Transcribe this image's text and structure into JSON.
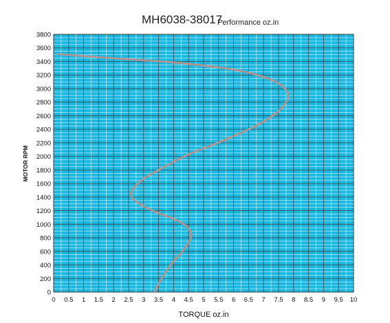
{
  "chart_data": {
    "type": "line",
    "title": "MH6038-38017",
    "subtitle": "Performance oz.in",
    "xlabel": "TORQUE  oz.in",
    "ylabel": "MOTOR RPM",
    "xlim": [
      0,
      10
    ],
    "ylim": [
      0,
      3800
    ],
    "x_ticks": [
      "0",
      "0.5",
      "1",
      "1.5",
      "2",
      "2.5",
      "3",
      "3.5",
      "4",
      "4.5",
      "5",
      "5.5",
      "6",
      "6.5",
      "7",
      "7.5",
      "8",
      "8.5",
      "9",
      "9.5",
      "10"
    ],
    "y_ticks": [
      "0",
      "200",
      "400",
      "600",
      "800",
      "1000",
      "1200",
      "1400",
      "1600",
      "1800",
      "2000",
      "2200",
      "2400",
      "2600",
      "2800",
      "3000",
      "3200",
      "3400",
      "3600",
      "3800"
    ],
    "grid": true,
    "colors": {
      "plot_bg": "#19b8e0",
      "grid_minor": "#ffffff",
      "grid_major": "#444444",
      "series_main": "#9a9aaa",
      "series_overlay": "#e0884a"
    },
    "series": [
      {
        "x": [
          3.35,
          3.6,
          3.9,
          4.2,
          4.45,
          4.57,
          4.55,
          4.4,
          4.1,
          3.7,
          3.3,
          2.95,
          2.7,
          2.58,
          2.62,
          2.8,
          3.1,
          3.5,
          4.0,
          4.6,
          5.3,
          6.0,
          6.6,
          7.1,
          7.5,
          7.75,
          7.82,
          7.7,
          7.35,
          6.8,
          6.0,
          5.0,
          3.9,
          2.9,
          1.9,
          1.0,
          0.15
        ],
        "y": [
          0,
          200,
          400,
          550,
          700,
          800,
          900,
          980,
          1060,
          1130,
          1200,
          1280,
          1350,
          1420,
          1500,
          1600,
          1700,
          1800,
          1920,
          2050,
          2170,
          2300,
          2420,
          2540,
          2670,
          2800,
          2900,
          3010,
          3110,
          3200,
          3280,
          3340,
          3390,
          3420,
          3450,
          3480,
          3510
        ]
      }
    ]
  }
}
